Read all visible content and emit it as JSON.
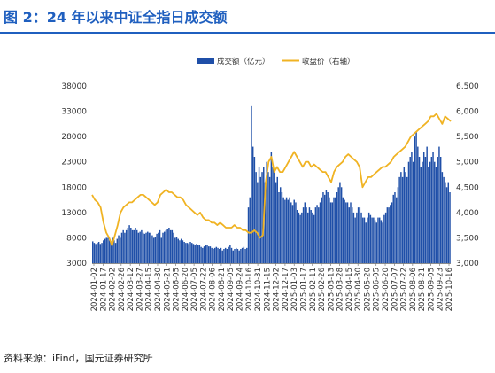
{
  "figure": {
    "title": "图 2：24 年以来中证全指日成交额",
    "source": "资料来源：iFind，国元证券研究所"
  },
  "chart_data": {
    "type": "bar",
    "title": "",
    "legend": [
      "成交额（亿元）",
      "收盘价（右轴）"
    ],
    "legend_placement": "top-center",
    "grid": false,
    "y_left": {
      "lim": [
        3000,
        38000
      ],
      "ticks": [
        "3000",
        "8000",
        "13000",
        "18000",
        "23000",
        "28000",
        "33000",
        "38000"
      ]
    },
    "y_right": {
      "lim": [
        3000,
        6500
      ],
      "ticks": [
        "3,000",
        "3,500",
        "4,000",
        "4,500",
        "5,000",
        "5,500",
        "6,000",
        "6,500"
      ]
    },
    "x_tick_labels": [
      "2024-01-02",
      "2024-01-17",
      "2024-02-02",
      "2024-02-26",
      "2024-03-12",
      "2024-03-27",
      "2024-04-15",
      "2024-04-30",
      "2024-05-21",
      "2024-06-05",
      "2024-06-20",
      "2024-07-05",
      "2024-07-22",
      "2024-08-06",
      "2024-08-21",
      "2024-09-05",
      "2024-09-24",
      "2024-10-16",
      "2024-10-31",
      "2024-11-15",
      "2024-12-02",
      "2024-12-17",
      "2025-01-03",
      "2025-01-17",
      "2025-02-11",
      "2025-02-26",
      "2025-03-13",
      "2025-03-28",
      "2025-04-15",
      "2025-04-30",
      "2025-05-20",
      "2025-06-05",
      "2025-06-20",
      "2025-07-07",
      "2025-07-22",
      "2025-08-06",
      "2025-08-21",
      "2025-09-05",
      "2025-09-23",
      "2025-10-16"
    ],
    "series": [
      {
        "name": "成交额（亿元）",
        "axis": "left",
        "color": "#1f4fa8",
        "values": [
          7300,
          7000,
          6800,
          7000,
          7200,
          6800,
          7000,
          7500,
          7800,
          8000,
          8000,
          7500,
          7300,
          8000,
          7500,
          7000,
          7800,
          8500,
          8000,
          9000,
          9500,
          9000,
          9500,
          10000,
          10500,
          10000,
          9500,
          9500,
          10000,
          9500,
          9000,
          9200,
          9500,
          9000,
          8800,
          9000,
          9200,
          9000,
          9000,
          8500,
          8000,
          8200,
          8800,
          9000,
          9500,
          8000,
          9000,
          9200,
          9500,
          9800,
          10000,
          9500,
          9500,
          9000,
          8000,
          8200,
          7800,
          7500,
          7800,
          7500,
          7200,
          7000,
          7000,
          6800,
          7200,
          7000,
          6800,
          6500,
          6800,
          6500,
          6500,
          6200,
          6000,
          6300,
          6500,
          6500,
          6300,
          6300,
          6000,
          5800,
          6000,
          6200,
          6000,
          5800,
          6000,
          5500,
          5800,
          6000,
          5800,
          6200,
          6500,
          6000,
          5500,
          5800,
          6000,
          5800,
          5500,
          5800,
          6000,
          6200,
          5800,
          6000,
          14000,
          16000,
          34000,
          26000,
          24000,
          21000,
          19000,
          22000,
          20000,
          21000,
          22000,
          19000,
          23000,
          21000,
          20000,
          25000,
          22000,
          21000,
          19000,
          20000,
          17000,
          18000,
          17000,
          16000,
          15500,
          16000,
          15500,
          16000,
          15000,
          14500,
          15500,
          15000,
          13500,
          13000,
          12500,
          13000,
          14000,
          15000,
          14000,
          13000,
          14000,
          13500,
          13000,
          12500,
          14000,
          14500,
          14000,
          15000,
          16000,
          17000,
          16500,
          17500,
          17000,
          16000,
          15000,
          15000,
          16000,
          16000,
          17000,
          18000,
          19000,
          18000,
          16000,
          15500,
          15000,
          15000,
          14000,
          15000,
          14000,
          13000,
          12000,
          13000,
          14000,
          14000,
          13000,
          12000,
          12000,
          11000,
          12000,
          13000,
          12500,
          12000,
          12000,
          11500,
          11000,
          12000,
          12000,
          11500,
          11000,
          12500,
          13000,
          14000,
          14000,
          14500,
          15000,
          16500,
          17000,
          16000,
          18000,
          20000,
          21000,
          20000,
          22000,
          21000,
          20000,
          23000,
          24000,
          25000,
          23000,
          28000,
          29000,
          26000,
          24000,
          22000,
          23000,
          25000,
          24000,
          26000,
          22000,
          23000,
          24000,
          25000,
          23000,
          22000,
          24000,
          26000,
          24000,
          21000,
          20000,
          19000,
          18000,
          19000,
          17000
        ]
      },
      {
        "name": "收盘价（右轴）",
        "axis": "right",
        "color": "#f0b323",
        "values": [
          4350,
          4250,
          4200,
          4100,
          3800,
          3600,
          3500,
          3350,
          3550,
          3750,
          4000,
          4100,
          4150,
          4200,
          4200,
          4250,
          4300,
          4350,
          4350,
          4300,
          4250,
          4200,
          4150,
          4200,
          4350,
          4400,
          4450,
          4400,
          4400,
          4350,
          4300,
          4300,
          4250,
          4150,
          4100,
          4050,
          4000,
          3950,
          4000,
          3900,
          3850,
          3850,
          3800,
          3800,
          3750,
          3800,
          3750,
          3700,
          3700,
          3700,
          3750,
          3700,
          3700,
          3650,
          3650,
          3600,
          3600,
          3650,
          3600,
          3500,
          3550,
          4600,
          5000,
          5100,
          4800,
          4900,
          4800,
          4800,
          4900,
          5000,
          5100,
          5200,
          5100,
          5000,
          4900,
          5000,
          5000,
          4900,
          4950,
          4900,
          4850,
          4800,
          4800,
          4700,
          4600,
          4800,
          4900,
          4950,
          5000,
          5100,
          5150,
          5100,
          5050,
          5000,
          4900,
          4500,
          4600,
          4700,
          4700,
          4750,
          4800,
          4850,
          4900,
          4900,
          4950,
          5000,
          5100,
          5150,
          5200,
          5250,
          5300,
          5400,
          5500,
          5550,
          5600,
          5650,
          5700,
          5750,
          5800,
          5900,
          5900,
          5950,
          5850,
          5750,
          5900,
          5850,
          5800
        ]
      }
    ]
  }
}
